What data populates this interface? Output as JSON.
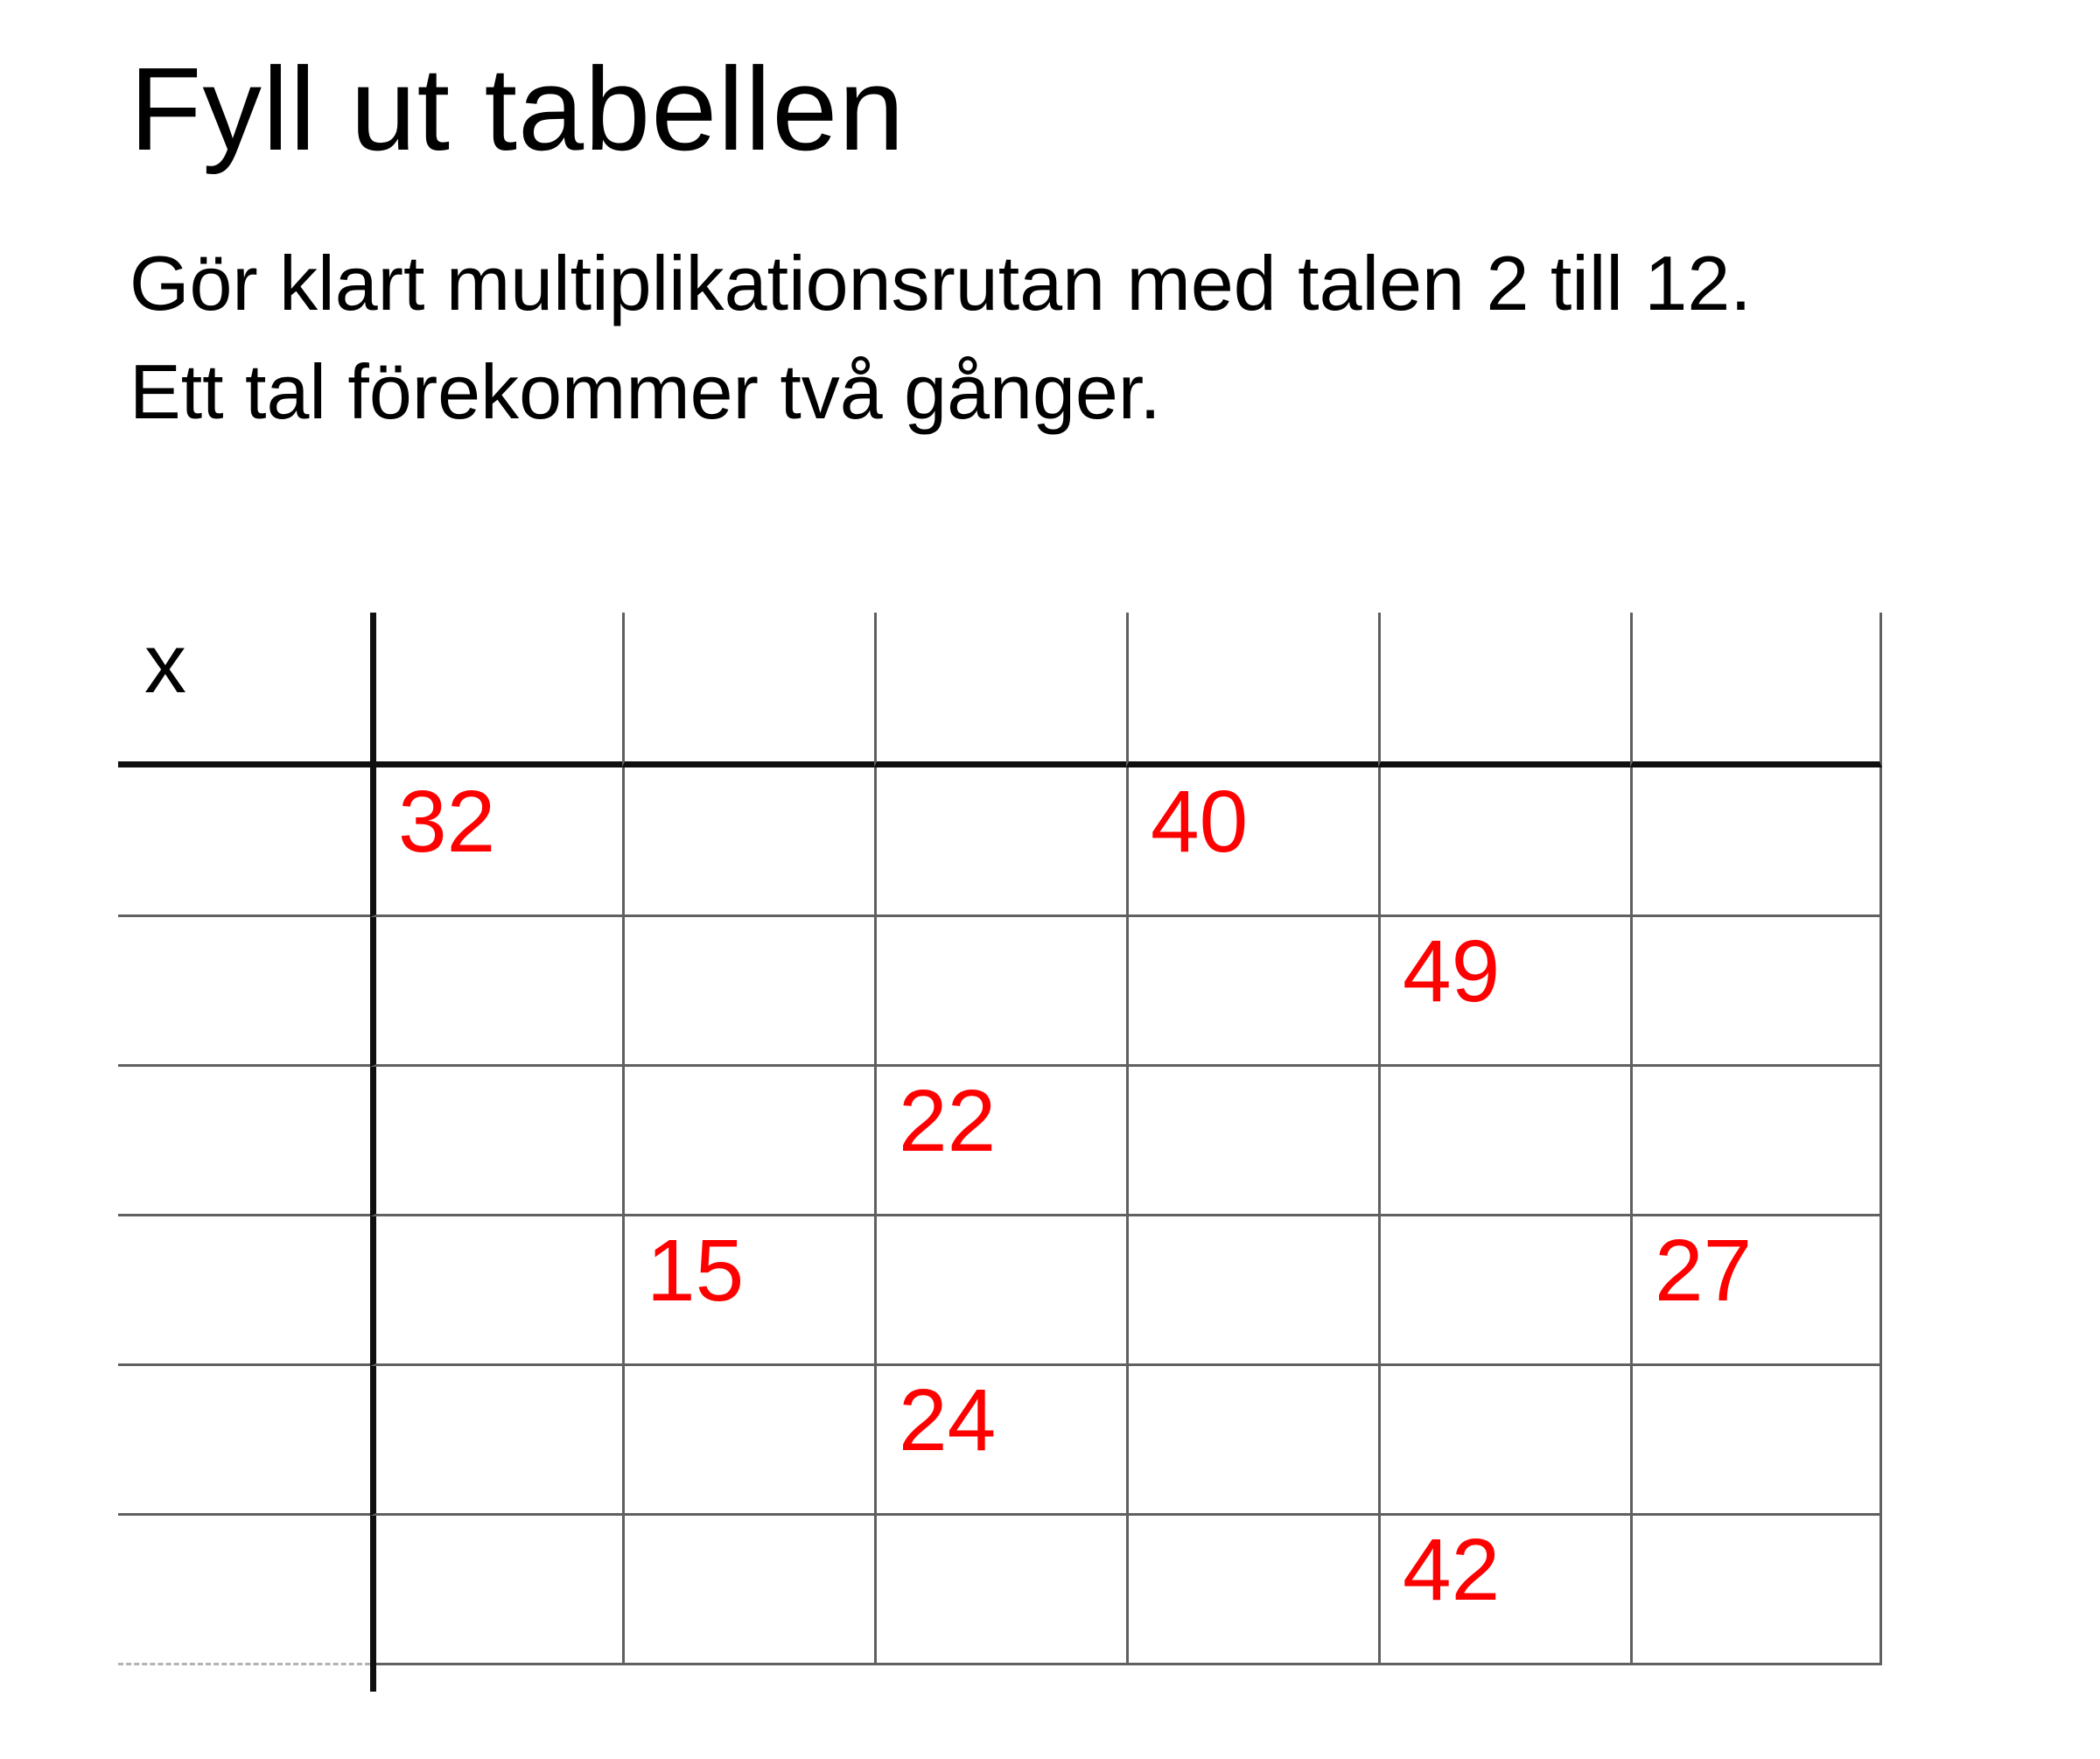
{
  "title": "Fyll ut tabellen",
  "instructions": {
    "lines": [
      "Gör klart multiplikationsrutan med talen 2 till 12.",
      "Ett tal förekommer två gånger."
    ]
  },
  "grid": {
    "corner_label": "x",
    "data_columns": 6,
    "data_rows": 6,
    "header_row_empty": true,
    "header_column_empty": true,
    "filled_cells": [
      {
        "row": 1,
        "col": 1,
        "value": "32"
      },
      {
        "row": 1,
        "col": 4,
        "value": "40"
      },
      {
        "row": 2,
        "col": 5,
        "value": "49"
      },
      {
        "row": 3,
        "col": 3,
        "value": "22"
      },
      {
        "row": 4,
        "col": 2,
        "value": "15"
      },
      {
        "row": 4,
        "col": 6,
        "value": "27"
      },
      {
        "row": 5,
        "col": 3,
        "value": "24"
      },
      {
        "row": 6,
        "col": 5,
        "value": "42"
      }
    ]
  },
  "colors": {
    "number_red": "#ff0000",
    "text_black": "#000000",
    "thick_line": "#0f0f0f",
    "thin_line": "#606060",
    "dashed_line": "#b3b3b3",
    "page_bg": "#ffffff"
  }
}
